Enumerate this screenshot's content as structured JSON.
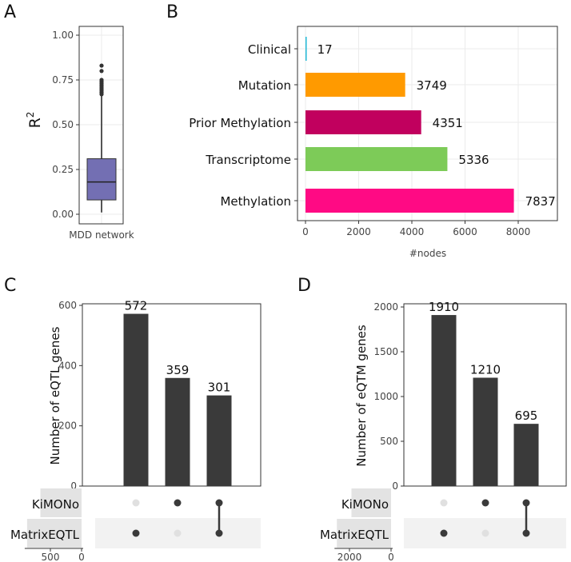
{
  "chart_data": [
    {
      "panel": "A",
      "type": "box",
      "categories": [
        "MDD network"
      ],
      "ylabel": "R",
      "ylabel_sup": "2",
      "ylim": [
        0,
        1
      ],
      "yticks": [
        "0.00",
        "0.25",
        "0.50",
        "0.75",
        "1.00"
      ],
      "ytick_values": [
        0,
        0.25,
        0.5,
        0.75,
        1
      ],
      "box": {
        "min": 0.01,
        "q1": 0.08,
        "median": 0.18,
        "q3": 0.31,
        "max": 0.66
      },
      "outliers": [
        0.67,
        0.68,
        0.69,
        0.7,
        0.71,
        0.72,
        0.73,
        0.74,
        0.75,
        0.8,
        0.83
      ],
      "color": "#736fb3"
    },
    {
      "panel": "B",
      "type": "bar",
      "orientation": "horizontal",
      "categories": [
        "Clinical",
        "Mutation",
        "Prior  Methylation",
        "Transcriptome",
        "Methylation"
      ],
      "values": [
        17,
        3749,
        4351,
        5336,
        7837
      ],
      "colors": [
        "#1fb8d6",
        "#ff9a00",
        "#c1005e",
        "#7dcb58",
        "#ff0a84"
      ],
      "labels": [
        "17",
        "3749",
        "4351",
        "5336",
        "7837"
      ],
      "xlabel": "#nodes",
      "xlim": [
        -300,
        9500
      ],
      "xticks": [
        "0",
        "2000",
        "4000",
        "6000",
        "8000"
      ],
      "xtick_values": [
        0,
        2000,
        4000,
        6000,
        8000
      ]
    },
    {
      "panel": "C",
      "type": "bar",
      "subtype": "upset",
      "ylabel": "Number of eQTL genes",
      "ylim": [
        0,
        600
      ],
      "yticks": [
        "0",
        "200",
        "400",
        "600"
      ],
      "ytick_values": [
        0,
        200,
        400,
        600
      ],
      "values": [
        572,
        359,
        301
      ],
      "labels": [
        "572",
        "359",
        "301"
      ],
      "sets": [
        "KiMONo",
        "MatrixEQTL"
      ],
      "membership": [
        [
          false,
          true
        ],
        [
          true,
          false
        ],
        [
          true,
          true
        ]
      ],
      "set_sizes": [
        660,
        873
      ],
      "set_size_ticks": [
        "500",
        "0"
      ],
      "set_size_tick_values": [
        500,
        0
      ]
    },
    {
      "panel": "D",
      "type": "bar",
      "subtype": "upset",
      "ylabel": "Number of eQTM genes",
      "ylim": [
        0,
        2000
      ],
      "yticks": [
        "0",
        "500",
        "1000",
        "1500",
        "2000"
      ],
      "ytick_values": [
        0,
        500,
        1000,
        1500,
        2000
      ],
      "values": [
        1910,
        1210,
        695
      ],
      "labels": [
        "1910",
        "1210",
        "695"
      ],
      "sets": [
        "KiMONo",
        "MatrixEQTL"
      ],
      "membership": [
        [
          false,
          true
        ],
        [
          true,
          false
        ],
        [
          true,
          true
        ]
      ],
      "set_sizes": [
        1905,
        2605
      ],
      "set_size_ticks": [
        "2000",
        "0"
      ],
      "set_size_tick_values": [
        2000,
        0
      ]
    }
  ]
}
